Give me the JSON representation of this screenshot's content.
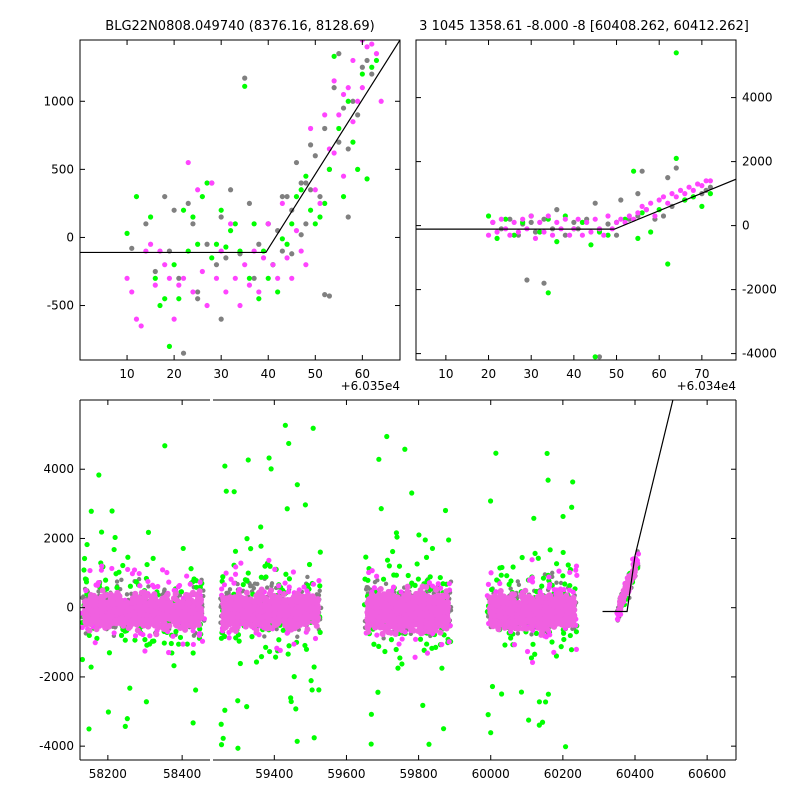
{
  "chart_data": [
    {
      "id": "top-left",
      "type": "scatter",
      "title": "BLG22N0808.049740 (8376.16, 8128.69)",
      "x_offset_label": "+6.035e4",
      "xlim": [
        0,
        68
      ],
      "ylim": [
        -900,
        1450
      ],
      "xticks": [
        10,
        20,
        30,
        40,
        50,
        60
      ],
      "yticks": [
        -500,
        0,
        500,
        1000
      ],
      "yaxis_side": "left",
      "model_line": {
        "x": [
          0,
          39.5,
          68
        ],
        "y": [
          -110,
          -110,
          1450
        ]
      },
      "series": [
        {
          "color": "#808080",
          "x": [
            11,
            14,
            16,
            18,
            19,
            20,
            21,
            23,
            24,
            25,
            27,
            28,
            29,
            30,
            31,
            32,
            34,
            36,
            37,
            38,
            40,
            41,
            42,
            43,
            44,
            45,
            46,
            47,
            48,
            49,
            50,
            51,
            52,
            53,
            54,
            55,
            56,
            57,
            58,
            59,
            60,
            61,
            62,
            55,
            53,
            45,
            40,
            35,
            30,
            25,
            22,
            47,
            52,
            57,
            48,
            43,
            49
          ],
          "y": [
            -80,
            100,
            -250,
            300,
            -100,
            200,
            -300,
            250,
            100,
            -450,
            -50,
            400,
            -200,
            150,
            -150,
            350,
            -120,
            250,
            -300,
            -50,
            100,
            -200,
            50,
            -100,
            300,
            200,
            550,
            400,
            100,
            350,
            600,
            300,
            800,
            500,
            1100,
            700,
            950,
            650,
            1000,
            900,
            1250,
            1300,
            1200,
            1350,
            -430,
            -120,
            100,
            1170,
            -600,
            -400,
            -850,
            20,
            -420,
            150,
            400,
            300,
            680
          ]
        },
        {
          "color": "#00ff00",
          "x": [
            10,
            12,
            15,
            16,
            17,
            18,
            19,
            20,
            21,
            22,
            23,
            24,
            25,
            26,
            27,
            28,
            29,
            30,
            31,
            32,
            33,
            34,
            35,
            36,
            37,
            38,
            39,
            40,
            41,
            42,
            43,
            44,
            45,
            46,
            47,
            48,
            49,
            50,
            51,
            52,
            53,
            54,
            55,
            56,
            57,
            58,
            59,
            60,
            61,
            62,
            63
          ],
          "y": [
            30,
            300,
            150,
            -300,
            -500,
            -450,
            -800,
            -200,
            -450,
            200,
            -100,
            150,
            -50,
            300,
            400,
            -150,
            -50,
            200,
            -70,
            50,
            100,
            -100,
            1110,
            -300,
            100,
            -450,
            -100,
            -300,
            -200,
            -400,
            -10,
            -50,
            100,
            300,
            350,
            450,
            200,
            100,
            150,
            250,
            500,
            1330,
            800,
            300,
            1000,
            700,
            500,
            1200,
            430,
            1250,
            1300
          ]
        },
        {
          "color": "#ff44ff",
          "x": [
            10,
            11,
            12,
            13,
            14,
            15,
            16,
            17,
            18,
            19,
            20,
            21,
            22,
            23,
            24,
            25,
            26,
            27,
            28,
            29,
            30,
            31,
            32,
            33,
            34,
            35,
            36,
            37,
            38,
            39,
            40,
            41,
            42,
            43,
            44,
            45,
            46,
            47,
            48,
            49,
            50,
            51,
            52,
            53,
            54,
            55,
            56,
            57,
            58,
            59,
            60,
            61,
            62,
            63,
            64,
            58,
            60,
            56,
            54
          ],
          "y": [
            -300,
            -400,
            -600,
            -650,
            -100,
            -50,
            -350,
            -100,
            -200,
            -300,
            -600,
            -350,
            -300,
            550,
            -400,
            350,
            -250,
            -500,
            400,
            -300,
            -100,
            -400,
            100,
            -300,
            -500,
            -200,
            -350,
            -100,
            -400,
            -150,
            100,
            -200,
            -300,
            250,
            -150,
            -300,
            50,
            -100,
            -200,
            800,
            350,
            250,
            900,
            650,
            1150,
            900,
            1050,
            1100,
            850,
            1000,
            1100,
            1400,
            1420,
            1350,
            1000,
            1300,
            1450,
            450,
            620
          ]
        }
      ]
    },
    {
      "id": "top-right",
      "type": "scatter",
      "title": "3 1045 1358.61 -8.000 -8 [60408.262, 60412.262]",
      "x_offset_label": "+6.034e4",
      "xlim": [
        3,
        78
      ],
      "ylim": [
        -4200,
        5800
      ],
      "xticks": [
        10,
        20,
        30,
        40,
        50,
        60,
        70
      ],
      "yticks": [
        -4000,
        -2000,
        0,
        2000,
        4000
      ],
      "yaxis_side": "right",
      "model_line": {
        "x": [
          3,
          49.5,
          78
        ],
        "y": [
          -110,
          -110,
          1450
        ]
      },
      "series": [
        {
          "color": "#808080",
          "x": [
            21,
            23,
            25,
            27,
            28,
            30,
            31,
            33,
            35,
            36,
            38,
            40,
            41,
            43,
            45,
            46,
            48,
            50,
            51,
            53,
            55,
            56,
            57,
            59,
            61,
            63,
            64,
            66,
            68,
            70,
            71,
            72,
            62,
            55,
            46,
            33,
            29
          ],
          "y": [
            100,
            -100,
            200,
            -300,
            50,
            100,
            -200,
            200,
            -100,
            500,
            -300,
            100,
            -100,
            200,
            700,
            -150,
            50,
            -300,
            800,
            200,
            300,
            1700,
            500,
            200,
            300,
            600,
            1800,
            800,
            900,
            1000,
            1100,
            1200,
            1500,
            1000,
            -4100,
            -1800,
            -1700
          ]
        },
        {
          "color": "#00ff00",
          "x": [
            20,
            22,
            24,
            26,
            28,
            30,
            32,
            34,
            36,
            38,
            40,
            42,
            44,
            46,
            48,
            50,
            52,
            54,
            56,
            58,
            60,
            62,
            64,
            66,
            68,
            70,
            72,
            64,
            45,
            34,
            55
          ],
          "y": [
            300,
            -400,
            200,
            -300,
            100,
            300,
            -200,
            200,
            -500,
            300,
            -100,
            100,
            -600,
            -200,
            -300,
            100,
            200,
            1700,
            400,
            -200,
            500,
            -1200,
            2100,
            800,
            900,
            600,
            1000,
            5400,
            -4100,
            -2100,
            -400
          ]
        },
        {
          "color": "#ff44ff",
          "x": [
            20,
            21,
            22,
            23,
            24,
            25,
            26,
            27,
            28,
            29,
            30,
            31,
            32,
            33,
            34,
            35,
            36,
            37,
            38,
            39,
            40,
            41,
            42,
            43,
            44,
            45,
            46,
            47,
            48,
            49,
            50,
            51,
            52,
            53,
            54,
            55,
            56,
            57,
            58,
            59,
            60,
            61,
            62,
            63,
            64,
            65,
            66,
            67,
            68,
            69,
            70,
            71,
            72
          ],
          "y": [
            -300,
            100,
            -200,
            200,
            -100,
            -300,
            100,
            -200,
            200,
            -100,
            300,
            -400,
            100,
            -200,
            300,
            -300,
            100,
            -100,
            200,
            -300,
            -100,
            200,
            -300,
            100,
            -200,
            200,
            -100,
            -300,
            300,
            -100,
            100,
            200,
            100,
            300,
            200,
            400,
            600,
            500,
            700,
            300,
            800,
            900,
            700,
            1000,
            900,
            1100,
            1000,
            1200,
            1100,
            1300,
            1250,
            1400,
            1400
          ]
        }
      ]
    },
    {
      "id": "bottom",
      "type": "scatter",
      "title": "",
      "x_offset_label": "",
      "ylim": [
        -4400,
        6000
      ],
      "yticks": [
        -4000,
        -2000,
        0,
        2000,
        4000
      ],
      "yaxis_side": "left",
      "broken_axis": [
        {
          "xlim": [
            58125,
            58475
          ],
          "xticks": [
            58200,
            58400
          ]
        },
        {
          "xlim": [
            59230,
            60680
          ],
          "xticks": [
            59400,
            59600,
            59800,
            60000,
            60200,
            60400,
            60600
          ]
        }
      ],
      "model_line": {
        "x": [
          60310,
          60378,
          60400,
          60505
        ],
        "y": [
          -110,
          -110,
          1500,
          6000
        ]
      },
      "seasons": [
        {
          "x_range": [
            58130,
            58460
          ],
          "core": [
            -800,
            600
          ],
          "grey": [
            -3900,
            2600
          ],
          "green": [
            -3700,
            4800
          ],
          "pink_extra": [
            -3800,
            5100
          ]
        },
        {
          "x_range": [
            59250,
            59530
          ],
          "core": [
            -800,
            600
          ],
          "grey": [
            -4200,
            3200
          ],
          "green": [
            -4100,
            5900
          ],
          "pink_extra": [
            -3500,
            5000
          ]
        },
        {
          "x_range": [
            59650,
            59890
          ],
          "core": [
            -900,
            700
          ],
          "grey": [
            -4100,
            4400
          ],
          "green": [
            -4200,
            5100
          ],
          "pink_extra": [
            -3600,
            5300
          ]
        },
        {
          "x_range": [
            59990,
            60240
          ],
          "core": [
            -800,
            600
          ],
          "grey": [
            -4100,
            3700
          ],
          "green": [
            -4300,
            5500
          ],
          "pink_extra": [
            -3500,
            5700
          ]
        },
        {
          "x_range": [
            60350,
            60410
          ],
          "core": [
            -400,
            1500
          ],
          "grey": [
            -1500,
            2200
          ],
          "green": [
            -4100,
            5500
          ],
          "pink_extra": [
            -800,
            2100
          ]
        }
      ]
    }
  ]
}
